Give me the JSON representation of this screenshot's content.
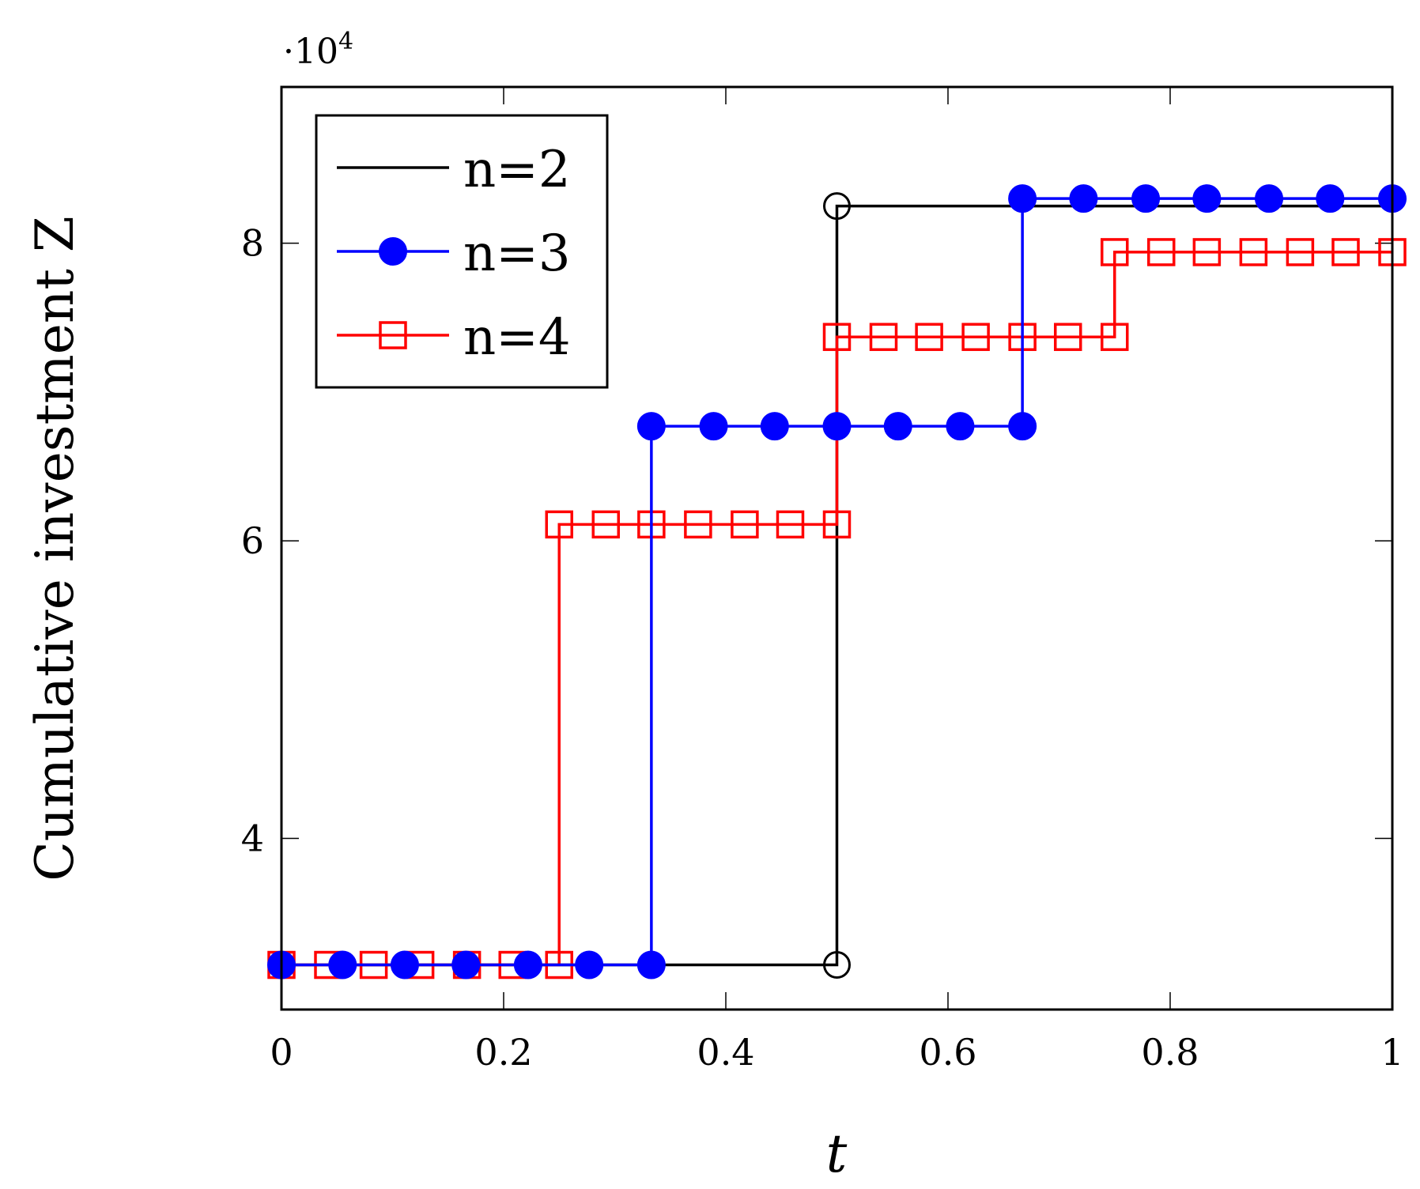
{
  "chart_data": {
    "type": "line",
    "step": "horizontal-then-vertical",
    "xlabel": "t",
    "ylabel": "Cumulative investment Z",
    "y_multiplier_label": "·10⁴",
    "y_multiplier_base": "·10",
    "y_multiplier_exp": "4",
    "xlim": [
      0,
      1
    ],
    "ylim": [
      2.85,
      9.05
    ],
    "xticks": [
      0,
      0.2,
      0.4,
      0.6,
      0.8,
      1
    ],
    "xtick_labels": [
      "0",
      "0.2",
      "0.4",
      "0.6",
      "0.8",
      "1"
    ],
    "yticks": [
      4,
      6,
      8
    ],
    "ytick_labels": [
      "4",
      "6",
      "8"
    ],
    "grid": false,
    "legend_position": "top-left",
    "series": [
      {
        "name": "n=2",
        "color": "#000000",
        "marker": "open-circle",
        "x": [
          0,
          0.5,
          0.5,
          1
        ],
        "y": [
          3.15,
          3.15,
          8.25,
          8.25
        ],
        "markers_x": [
          0.5,
          0.5
        ],
        "markers_y": [
          3.15,
          8.25
        ]
      },
      {
        "name": "n=3",
        "color": "#0000ff",
        "marker": "filled-circle",
        "x": [
          0,
          0.333,
          0.333,
          0.667,
          0.667,
          1
        ],
        "y": [
          3.15,
          3.15,
          6.77,
          6.77,
          8.3,
          8.3
        ],
        "markers_x": [
          0,
          0.055,
          0.111,
          0.166,
          0.222,
          0.277,
          0.333,
          0.333,
          0.389,
          0.444,
          0.5,
          0.555,
          0.611,
          0.667,
          0.667,
          0.722,
          0.778,
          0.833,
          0.889,
          0.944,
          1
        ],
        "markers_y": [
          3.15,
          3.15,
          3.15,
          3.15,
          3.15,
          3.15,
          3.15,
          6.77,
          6.77,
          6.77,
          6.77,
          6.77,
          6.77,
          6.77,
          8.3,
          8.3,
          8.3,
          8.3,
          8.3,
          8.3,
          8.3
        ]
      },
      {
        "name": "n=4",
        "color": "#ff0000",
        "marker": "open-square",
        "x": [
          0,
          0.25,
          0.25,
          0.5,
          0.5,
          0.75,
          0.75,
          1
        ],
        "y": [
          3.15,
          3.15,
          6.11,
          6.11,
          7.37,
          7.37,
          7.94,
          7.94
        ],
        "markers_x": [
          0,
          0.042,
          0.083,
          0.125,
          0.167,
          0.208,
          0.25,
          0.25,
          0.292,
          0.333,
          0.375,
          0.417,
          0.458,
          0.5,
          0.5,
          0.542,
          0.583,
          0.625,
          0.667,
          0.708,
          0.75,
          0.75,
          0.792,
          0.833,
          0.875,
          0.917,
          0.958,
          1
        ],
        "markers_y": [
          3.15,
          3.15,
          3.15,
          3.15,
          3.15,
          3.15,
          3.15,
          6.11,
          6.11,
          6.11,
          6.11,
          6.11,
          6.11,
          6.11,
          7.37,
          7.37,
          7.37,
          7.37,
          7.37,
          7.37,
          7.37,
          7.94,
          7.94,
          7.94,
          7.94,
          7.94,
          7.94,
          7.94
        ]
      }
    ]
  }
}
